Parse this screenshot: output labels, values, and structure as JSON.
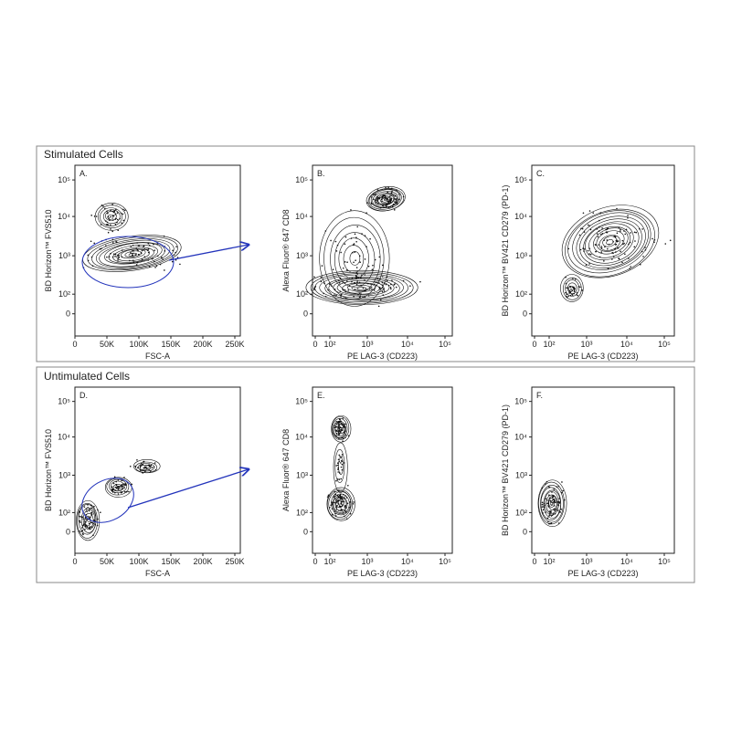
{
  "panels": [
    {
      "title": "Stimulated Cells",
      "plots": [
        {
          "letter": "A.",
          "y_label": "BD Horizon™ FVS510",
          "x_label": "FSC-A",
          "x_ticks": [
            "0",
            "50K",
            "100K",
            "150K",
            "200K",
            "250K"
          ],
          "y_ticks": [
            "10⁵",
            "10⁴",
            "10³",
            "10²",
            "0"
          ]
        },
        {
          "letter": "B.",
          "y_label": "Alexa Fluor® 647 CD8",
          "x_label": "PE LAG-3 (CD223)",
          "x_ticks": [
            "0",
            "10²",
            "10³",
            "10⁴",
            "10⁵"
          ],
          "y_ticks": [
            "10⁵",
            "10⁴",
            "10³",
            "10²",
            "0"
          ]
        },
        {
          "letter": "C.",
          "y_label": "BD Horizon™ BV421 CD279 (PD-1)",
          "x_label": "PE LAG-3 (CD223)",
          "x_ticks": [
            "0",
            "10²",
            "10³",
            "10⁴",
            "10⁵"
          ],
          "y_ticks": [
            "10⁵",
            "10⁴",
            "10³",
            "10²",
            "0"
          ]
        }
      ]
    },
    {
      "title": "Untimulated Cells",
      "plots": [
        {
          "letter": "D.",
          "y_label": "BD Horizon™ FVS510",
          "x_label": "FSC-A",
          "x_ticks": [
            "0",
            "50K",
            "100K",
            "150K",
            "200K",
            "250K"
          ],
          "y_ticks": [
            "10⁵",
            "10⁴",
            "10³",
            "10²",
            "0"
          ]
        },
        {
          "letter": "E.",
          "y_label": "Alexa Fluor® 647 CD8",
          "x_label": "PE LAG-3 (CD223)",
          "x_ticks": [
            "0",
            "10²",
            "10³",
            "10⁴",
            "10⁵"
          ],
          "y_ticks": [
            "10⁵",
            "10⁴",
            "10³",
            "10²",
            "0"
          ]
        },
        {
          "letter": "F.",
          "y_label": "BD Horizon™ BV421 CD279 (PD-1)",
          "x_label": "PE LAG-3 (CD223)",
          "x_ticks": [
            "0",
            "10²",
            "10³",
            "10⁴",
            "10⁵"
          ],
          "y_ticks": [
            "10⁵",
            "10⁴",
            "10³",
            "10²",
            "0"
          ]
        }
      ]
    }
  ]
}
